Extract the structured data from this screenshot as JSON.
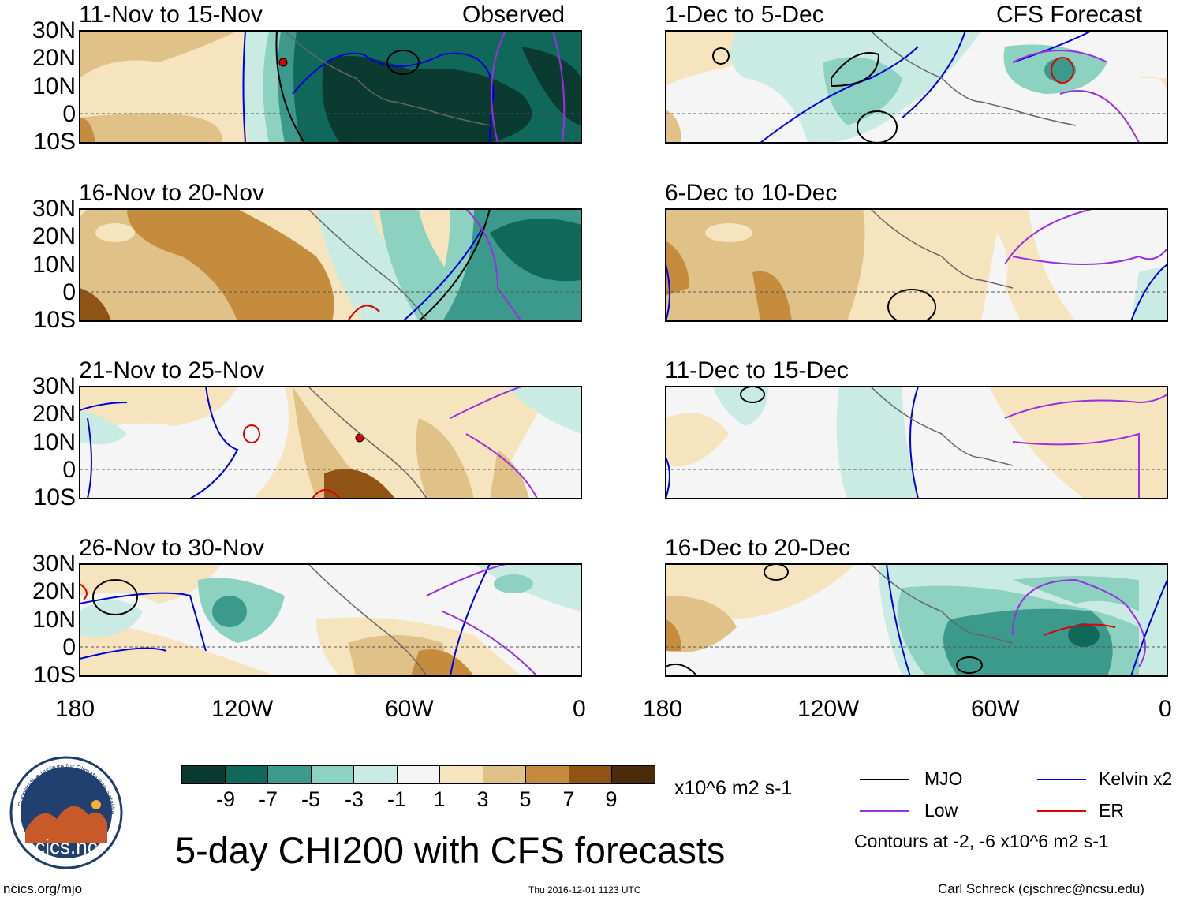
{
  "header": {
    "left_label": "Observed",
    "right_label": "CFS Forecast"
  },
  "axes": {
    "lat_ticks": [
      "30N",
      "20N",
      "10N",
      "0",
      "10S"
    ],
    "lon_ticks": [
      "180",
      "120W",
      "60W",
      "0"
    ]
  },
  "panels_left": [
    {
      "title": "11-Nov to 15-Nov"
    },
    {
      "title": "16-Nov to 20-Nov"
    },
    {
      "title": "21-Nov to 25-Nov"
    },
    {
      "title": "26-Nov to 30-Nov"
    }
  ],
  "panels_right": [
    {
      "title": "1-Dec to 5-Dec"
    },
    {
      "title": "6-Dec to 10-Dec"
    },
    {
      "title": "11-Dec to 15-Dec"
    },
    {
      "title": "16-Dec to 20-Dec"
    }
  ],
  "colorbar": {
    "ticks": [
      "-9",
      "-7",
      "-5",
      "-3",
      "-1",
      "1",
      "3",
      "5",
      "7",
      "9"
    ],
    "colors": [
      "#0b3b30",
      "#10685b",
      "#3b9a8b",
      "#8dd1c1",
      "#c9ebe3",
      "#f5f5f5",
      "#f6e4bf",
      "#e0c187",
      "#c58c3e",
      "#8f5413",
      "#4a2b0b"
    ],
    "units": "x10^6 m2 s-1"
  },
  "legend": {
    "mjo": "MJO",
    "kelvin": "Kelvin x2",
    "low": "Low",
    "er": "ER",
    "contours_note": "Contours at -2, -6 x10^6 m2 s-1",
    "colors": {
      "mjo": "#000000",
      "kelvin": "#0000dd",
      "low": "#9a30e0",
      "er": "#dd0000"
    }
  },
  "main_title": "5-day CHI200 with CFS forecasts",
  "logo_text": "cics.nc",
  "logo_ring_text": "Cooperative Institute for Climate and Satellites",
  "footer": {
    "left": "ncics.org/mjo",
    "center": "Thu 2016-12-01 1123 UTC",
    "right": "Carl Schreck (cjschrec@ncsu.edu)"
  }
}
